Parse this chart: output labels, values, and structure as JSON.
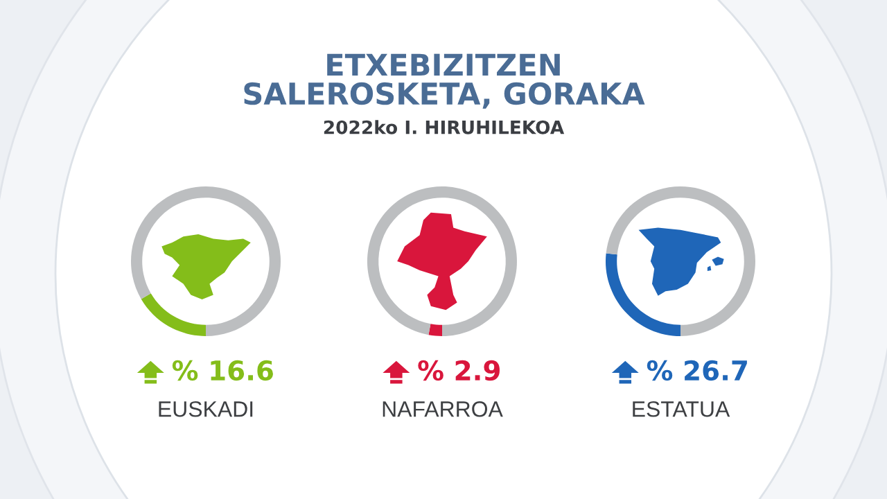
{
  "chart_data": [
    {
      "type": "other",
      "title": "ETXEBIZITZEN\nSALEROSKETA, GORAKA",
      "subtitle": "2022ko I. HIRUHILEKOA"
    },
    {
      "type": "donut",
      "xlabel": "EUSKADI",
      "categories": [
        null,
        null
      ],
      "values": [
        16.6,
        83.4
      ],
      "colors": [
        "#84bd1a",
        "#bcbec0"
      ],
      "value_labels": [
        "% 16.6",
        null
      ]
    },
    {
      "type": "donut",
      "xlabel": "NAFARROA",
      "categories": [
        null,
        null
      ],
      "values": [
        2.9,
        97.1
      ],
      "colors": [
        "#d9163c",
        "#bcbec0"
      ],
      "value_labels": [
        "% 2.9",
        null
      ]
    },
    {
      "type": "donut",
      "xlabel": "ESTATUA",
      "categories": [
        null,
        null
      ],
      "values": [
        26.7,
        73.3
      ],
      "colors": [
        "#1f66b8",
        "#bcbec0"
      ],
      "value_labels": [
        "% 26.7",
        null
      ]
    }
  ]
}
